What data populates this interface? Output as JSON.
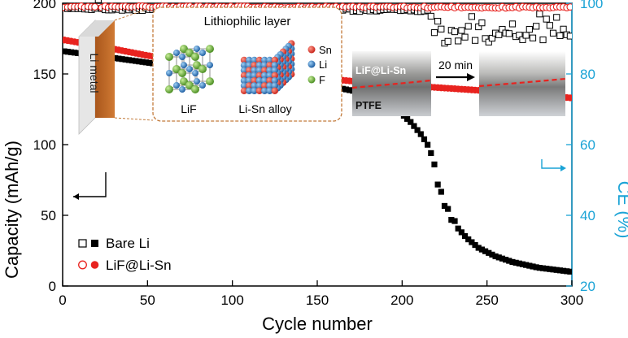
{
  "chart_data": {
    "type": "scatter",
    "xlabel": "Cycle number",
    "ylabel": "Capacity (mAh/g)",
    "y2label": "CE (%)",
    "xlim": [
      0,
      300
    ],
    "ylim": [
      0,
      200
    ],
    "y2lim": [
      20,
      100
    ],
    "xticks": [
      0,
      50,
      100,
      150,
      200,
      250,
      300
    ],
    "yticks": [
      0,
      50,
      100,
      150,
      200
    ],
    "y2ticks": [
      20,
      40,
      60,
      80,
      100
    ],
    "legend_position": "bottom-left",
    "colors": {
      "bare": "#000000",
      "lif": "#e8231f",
      "ce_axis": "#1aa3d6"
    },
    "legend": [
      {
        "label": "Bare Li",
        "series": "bare"
      },
      {
        "label": "LiF@Li-Sn",
        "series": "lif"
      }
    ],
    "series": {
      "bare_capacity": {
        "key": [
          [
            1,
            166
          ],
          [
            20,
            163
          ],
          [
            50,
            158
          ],
          [
            100,
            150
          ],
          [
            150,
            143
          ],
          [
            180,
            136
          ],
          [
            195,
            127
          ],
          [
            205,
            116
          ],
          [
            212,
            106
          ],
          [
            216,
            100
          ],
          [
            218,
            90
          ],
          [
            220,
            78
          ],
          [
            222,
            68
          ],
          [
            225,
            58
          ],
          [
            228,
            50
          ],
          [
            232,
            42
          ],
          [
            238,
            34
          ],
          [
            245,
            27
          ],
          [
            255,
            21
          ],
          [
            265,
            17
          ],
          [
            280,
            13
          ],
          [
            300,
            10
          ]
        ]
      },
      "lif_capacity": {
        "key": [
          [
            1,
            174
          ],
          [
            20,
            170
          ],
          [
            50,
            163
          ],
          [
            100,
            154
          ],
          [
            150,
            147
          ],
          [
            200,
            142
          ],
          [
            250,
            138
          ],
          [
            300,
            133
          ]
        ]
      },
      "bare_ce": {
        "key": [
          [
            1,
            98.5
          ],
          [
            100,
            98
          ],
          [
            200,
            98
          ],
          [
            215,
            98
          ],
          [
            220,
            94
          ],
          [
            225,
            88
          ],
          [
            230,
            91
          ],
          [
            240,
            93
          ],
          [
            260,
            92
          ],
          [
            280,
            93
          ],
          [
            300,
            93
          ]
        ]
      },
      "lif_ce": {
        "key": [
          [
            1,
            99
          ],
          [
            300,
            98.8
          ]
        ]
      }
    },
    "annotations": {
      "ptfe": "PTFE",
      "coating": "LiF@Li-Sn",
      "time": "20 min"
    }
  },
  "inset": {
    "li_metal": "Li metal",
    "layer_title": "Lithiophilic layer",
    "lif_label": "LiF",
    "alloy_label": "Li-Sn alloy",
    "elements": [
      {
        "label": "Sn",
        "color": "#e03a2f"
      },
      {
        "label": "Li",
        "color": "#2f7fc1"
      },
      {
        "label": "F",
        "color": "#6db33f"
      }
    ]
  }
}
